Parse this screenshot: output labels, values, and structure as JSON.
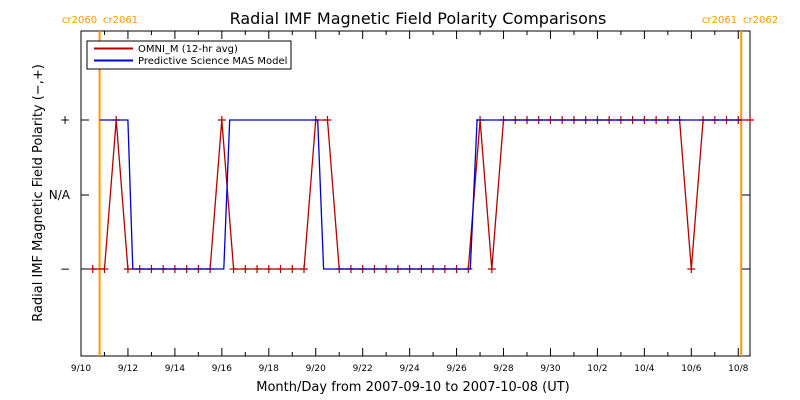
{
  "chart_data": {
    "type": "line",
    "title": "Radial IMF Magnetic Field Polarity Comparisons",
    "xlabel": "Month/Day from 2007-09-10 to 2007-10-08 (UT)",
    "ylabel": "Radial IMF Magnetic Field Polarity (−,+)",
    "xlim": [
      "2007-09-10",
      "2007-10-08T12:00"
    ],
    "x_ticks": [
      "9/10",
      "9/12",
      "9/14",
      "9/16",
      "9/18",
      "9/20",
      "9/22",
      "9/24",
      "9/26",
      "9/28",
      "9/30",
      "10/2",
      "10/4",
      "10/6",
      "10/8"
    ],
    "y_categories": [
      "−",
      "N/A",
      "+"
    ],
    "y_values_meaning": {
      "-1": "−",
      "0": "N/A",
      "1": "+"
    },
    "grid": false,
    "legend_position": "top-left",
    "colors": {
      "omni": "#b30000",
      "mas": "#0000cc",
      "cr_line": "#ff9900",
      "axes": "#000000"
    },
    "carrington_boundaries": [
      {
        "time": "2007-09-10T19:00",
        "labels": [
          "cr2060",
          "cr2061"
        ],
        "side": "left"
      },
      {
        "time": "2007-10-08T03:00",
        "labels": [
          "cr2061",
          "cr2062"
        ],
        "side": "right"
      }
    ],
    "series": [
      {
        "name": "OMNI_M (12-hr avg)",
        "color": "#b30000",
        "marker": "+",
        "points": [
          [
            "2007-09-10T12:00",
            -1
          ],
          [
            "2007-09-11T00:00",
            -1
          ],
          [
            "2007-09-11T12:00",
            1
          ],
          [
            "2007-09-12T00:00",
            -1
          ],
          [
            "2007-09-12T12:00",
            -1
          ],
          [
            "2007-09-13T00:00",
            -1
          ],
          [
            "2007-09-13T12:00",
            -1
          ],
          [
            "2007-09-14T00:00",
            -1
          ],
          [
            "2007-09-14T12:00",
            -1
          ],
          [
            "2007-09-15T00:00",
            -1
          ],
          [
            "2007-09-15T12:00",
            -1
          ],
          [
            "2007-09-16T00:00",
            1
          ],
          [
            "2007-09-16T12:00",
            -1
          ],
          [
            "2007-09-17T00:00",
            -1
          ],
          [
            "2007-09-17T12:00",
            -1
          ],
          [
            "2007-09-18T00:00",
            -1
          ],
          [
            "2007-09-18T12:00",
            -1
          ],
          [
            "2007-09-19T00:00",
            -1
          ],
          [
            "2007-09-19T12:00",
            -1
          ],
          [
            "2007-09-20T00:00",
            1
          ],
          [
            "2007-09-20T12:00",
            1
          ],
          [
            "2007-09-21T00:00",
            -1
          ],
          [
            "2007-09-21T12:00",
            -1
          ],
          [
            "2007-09-22T00:00",
            -1
          ],
          [
            "2007-09-22T12:00",
            -1
          ],
          [
            "2007-09-23T00:00",
            -1
          ],
          [
            "2007-09-23T12:00",
            -1
          ],
          [
            "2007-09-24T00:00",
            -1
          ],
          [
            "2007-09-24T12:00",
            -1
          ],
          [
            "2007-09-25T00:00",
            -1
          ],
          [
            "2007-09-25T12:00",
            -1
          ],
          [
            "2007-09-26T00:00",
            -1
          ],
          [
            "2007-09-26T12:00",
            -1
          ],
          [
            "2007-09-27T00:00",
            1
          ],
          [
            "2007-09-27T12:00",
            -1
          ],
          [
            "2007-09-28T00:00",
            1
          ],
          [
            "2007-09-28T12:00",
            1
          ],
          [
            "2007-09-29T00:00",
            1
          ],
          [
            "2007-09-29T12:00",
            1
          ],
          [
            "2007-09-30T00:00",
            1
          ],
          [
            "2007-09-30T12:00",
            1
          ],
          [
            "2007-10-01T00:00",
            1
          ],
          [
            "2007-10-01T12:00",
            1
          ],
          [
            "2007-10-02T00:00",
            1
          ],
          [
            "2007-10-02T12:00",
            1
          ],
          [
            "2007-10-03T00:00",
            1
          ],
          [
            "2007-10-03T12:00",
            1
          ],
          [
            "2007-10-04T00:00",
            1
          ],
          [
            "2007-10-04T12:00",
            1
          ],
          [
            "2007-10-05T00:00",
            1
          ],
          [
            "2007-10-05T12:00",
            1
          ],
          [
            "2007-10-06T00:00",
            -1
          ],
          [
            "2007-10-06T12:00",
            1
          ],
          [
            "2007-10-07T00:00",
            1
          ],
          [
            "2007-10-07T12:00",
            1
          ],
          [
            "2007-10-08T00:00",
            1
          ],
          [
            "2007-10-08T12:00",
            1
          ]
        ]
      },
      {
        "name": "Predictive Science MAS Model",
        "color": "#0000cc",
        "marker": "none",
        "points": [
          [
            "2007-09-10T19:00",
            1
          ],
          [
            "2007-09-12T00:00",
            1
          ],
          [
            "2007-09-12T05:00",
            -1
          ],
          [
            "2007-09-16T02:00",
            -1
          ],
          [
            "2007-09-16T08:00",
            1
          ],
          [
            "2007-09-20T02:00",
            1
          ],
          [
            "2007-09-20T08:00",
            -1
          ],
          [
            "2007-09-26T14:00",
            -1
          ],
          [
            "2007-09-26T21:00",
            1
          ],
          [
            "2007-10-08T03:00",
            1
          ]
        ]
      }
    ]
  }
}
